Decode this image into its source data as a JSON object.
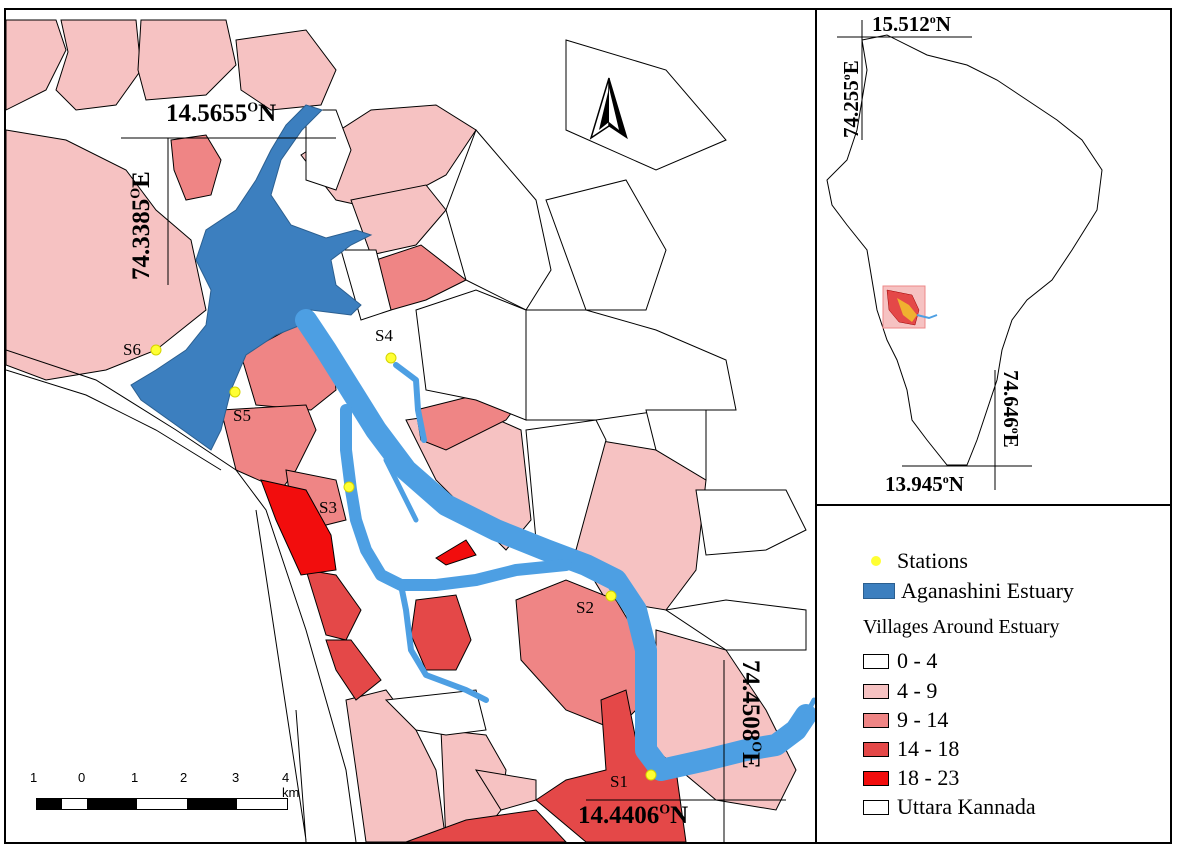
{
  "colors": {
    "class_0_4": "#ffffff",
    "class_4_9": "#f6c2c2",
    "class_9_14": "#ef8585",
    "class_14_18": "#e44848",
    "class_18_23": "#f20d0d",
    "estuary": "#3c7fbf",
    "river": "#4d9fe3",
    "station": "#ffff33",
    "boundary": "#000000"
  },
  "main_map": {
    "north_arrow": "north-arrow-icon",
    "coords": {
      "top_lat": "14.5655",
      "top_lat_deg": "O",
      "top_lat_dir": "N",
      "left_lon": "74.3385",
      "left_lon_deg": "O",
      "left_lon_dir": "E",
      "right_lon": "74.4508",
      "right_lon_deg": "O",
      "right_lon_dir": "E",
      "bottom_lat": "14.4406",
      "bottom_lat_deg": "O",
      "bottom_lat_dir": "N"
    },
    "stations": [
      {
        "label": "S1"
      },
      {
        "label": "S2"
      },
      {
        "label": "S3"
      },
      {
        "label": "S4"
      },
      {
        "label": "S5"
      },
      {
        "label": "S6"
      }
    ],
    "scale_bar": {
      "ticks": [
        "1",
        "0",
        "1",
        "2",
        "3",
        "4 km"
      ]
    }
  },
  "inset_map": {
    "coords": {
      "top_lat": "15.512",
      "top_lat_deg": "o",
      "top_lat_dir": "N",
      "left_lon": "74.255",
      "left_lon_deg": "o",
      "left_lon_dir": "E",
      "right_lon": "74.646",
      "right_lon_deg": "o",
      "right_lon_dir": "E",
      "bottom_lat": "13.945",
      "bottom_lat_deg": "o",
      "bottom_lat_dir": "N"
    }
  },
  "legend": {
    "stations": "Stations",
    "estuary": "Aganashini Estuary",
    "villages_title": "Villages Around Estuary",
    "classes": [
      "0 - 4",
      "4 - 9",
      "9 - 14",
      "14 - 18",
      "18 - 23"
    ],
    "region": "Uttara Kannada"
  }
}
